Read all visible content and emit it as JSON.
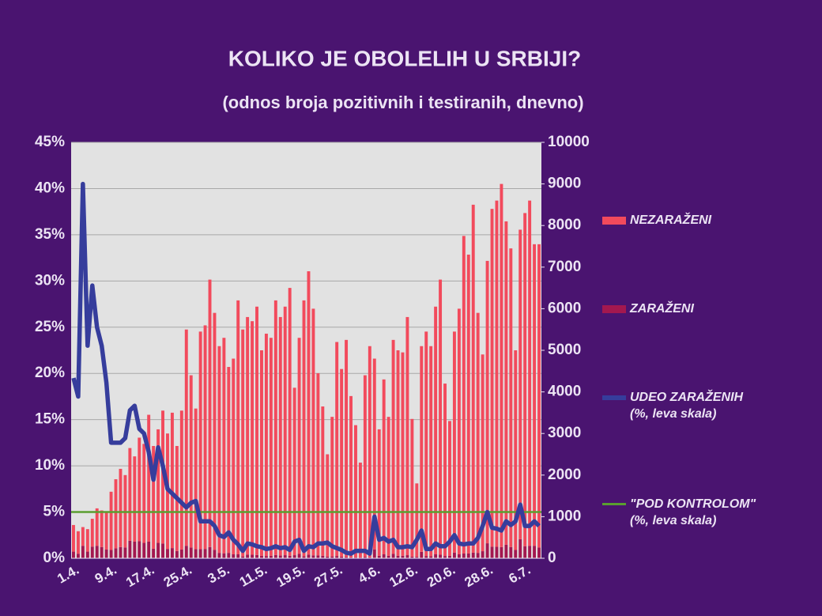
{
  "chart_data": {
    "type": "bar",
    "title": "KOLIKO JE OBOLELIH U SRBIJI?",
    "subtitle": "(odnos broja pozitivnih i testiranih, dnevno)",
    "categories": [
      "1.4.",
      null,
      null,
      null,
      null,
      null,
      null,
      null,
      "9.4.",
      null,
      null,
      null,
      null,
      null,
      null,
      null,
      "17.4.",
      null,
      null,
      null,
      null,
      null,
      null,
      null,
      "25.4.",
      null,
      null,
      null,
      null,
      null,
      null,
      null,
      "3.5.",
      null,
      null,
      null,
      null,
      null,
      null,
      null,
      "11.5.",
      null,
      null,
      null,
      null,
      null,
      null,
      null,
      "19.5.",
      null,
      null,
      null,
      null,
      null,
      null,
      null,
      "27.5.",
      null,
      null,
      null,
      null,
      null,
      null,
      null,
      "4.6.",
      null,
      null,
      null,
      null,
      null,
      null,
      null,
      "12.6.",
      null,
      null,
      null,
      null,
      null,
      null,
      null,
      "20.6.",
      null,
      null,
      null,
      null,
      null,
      null,
      null,
      "28.6.",
      null,
      null,
      null,
      null,
      null,
      null,
      null,
      "6.7.",
      null,
      null,
      null
    ],
    "stacked": true,
    "grid": true,
    "legend": "right",
    "ylim": [
      0,
      45
    ],
    "yticks": [
      {
        "value": 0,
        "label": "0%"
      },
      {
        "value": 5,
        "label": "5%"
      },
      {
        "value": 10,
        "label": "10%"
      },
      {
        "value": 15,
        "label": "15%"
      },
      {
        "value": 20,
        "label": "20%"
      },
      {
        "value": 25,
        "label": "25%"
      },
      {
        "value": 30,
        "label": "30%"
      },
      {
        "value": 35,
        "label": "35%"
      },
      {
        "value": 40,
        "label": "40%"
      },
      {
        "value": 45,
        "label": "45%"
      }
    ],
    "y2lim": [
      0,
      10000
    ],
    "y2ticks": [
      0,
      1000,
      2000,
      3000,
      4000,
      5000,
      6000,
      7000,
      8000,
      9000,
      10000
    ],
    "series": [
      {
        "name": "NEZARAŽENI",
        "type": "bar",
        "axis": "y2",
        "color": "#f24a5c",
        "values": [
          640,
          540,
          450,
          540,
          670,
          900,
          880,
          890,
          1400,
          1660,
          1880,
          1740,
          2230,
          2050,
          2490,
          2380,
          3050,
          2470,
          2730,
          3195,
          2775,
          3255,
          2525,
          3340,
          5200,
          4140,
          3380,
          5230,
          5375,
          6430,
          5695,
          4970,
          5180,
          4470,
          4705,
          6105,
          5455,
          5710,
          5615,
          5970,
          4940,
          5345,
          5240,
          6120,
          5735,
          5975,
          6440,
          4025,
          5195,
          6150,
          6810,
          5930,
          4380,
          3590,
          2460,
          3355,
          5145,
          4510,
          5220,
          3880,
          3175,
          2280,
          4365,
          5075,
          4585,
          3040,
          4205,
          3340,
          5145,
          4940,
          4890,
          5725,
          3310,
          1765,
          4945,
          5395,
          5050,
          5955,
          6615,
          4145,
          3240,
          5315,
          5905,
          7635,
          7185,
          8365,
          5770,
          4730,
          6790,
          8120,
          8325,
          8730,
          7775,
          7180,
          4800,
          7440,
          8010,
          8300,
          7250,
          7290
        ]
      },
      {
        "name": "ZARAŽENI",
        "type": "bar",
        "axis": "y2",
        "color": "#a3184f",
        "values": [
          160,
          110,
          300,
          160,
          280,
          300,
          270,
          210,
          200,
          240,
          270,
          260,
          420,
          400,
          410,
          370,
          400,
          230,
          370,
          355,
          225,
          245,
          175,
          210,
          300,
          260,
          220,
          220,
          225,
          270,
          205,
          130,
          120,
          130,
          95,
          95,
          45,
          90,
          85,
          80,
          60,
          55,
          60,
          80,
          65,
          75,
          60,
          75,
          105,
          50,
          90,
          70,
          70,
          60,
          40,
          45,
          55,
          40,
          30,
          20,
          25,
          20,
          35,
          25,
          215,
          60,
          95,
          60,
          105,
          60,
          60,
          75,
          40,
          35,
          155,
          55,
          50,
          95,
          85,
          55,
          60,
          135,
          95,
          115,
          115,
          135,
          130,
          170,
          360,
          280,
          275,
          270,
          325,
          270,
          200,
          460,
          290,
          300,
          300,
          260
        ]
      },
      {
        "name": "UDEO ZARAŽENIH (%, leva skala)",
        "type": "line",
        "axis": "y",
        "color": "#363d9c",
        "values": [
          19.5,
          17.5,
          40.5,
          23,
          29.5,
          25,
          23,
          19,
          12.5,
          12.5,
          12.5,
          13,
          16,
          16.5,
          14,
          13.5,
          11.5,
          8.5,
          12,
          10,
          7.5,
          7,
          6.5,
          6,
          5.5,
          6,
          6.2,
          4,
          4,
          4,
          3.5,
          2.5,
          2.3,
          2.8,
          2,
          1.5,
          0.8,
          1.6,
          1.5,
          1.3,
          1.2,
          1,
          1.1,
          1.3,
          1.1,
          1.2,
          0.9,
          1.8,
          2,
          0.8,
          1.3,
          1.2,
          1.6,
          1.6,
          1.7,
          1.3,
          1.1,
          0.9,
          0.6,
          0.5,
          0.8,
          0.8,
          0.8,
          0.5,
          4.5,
          2,
          2.2,
          1.8,
          2,
          1.2,
          1.2,
          1.3,
          1.2,
          2,
          3,
          1,
          1,
          1.6,
          1.3,
          1.3,
          1.8,
          2.5,
          1.6,
          1.5,
          1.6,
          1.6,
          2.2,
          3.5,
          5,
          3.3,
          3.2,
          3,
          4,
          3.6,
          4,
          5.8,
          3.5,
          3.5,
          4,
          3.5
        ]
      }
    ],
    "threshold": {
      "name": "\"POD KONTROLOM\" (%, leva skala)",
      "value": 5,
      "color": "#5a9e2f"
    }
  }
}
